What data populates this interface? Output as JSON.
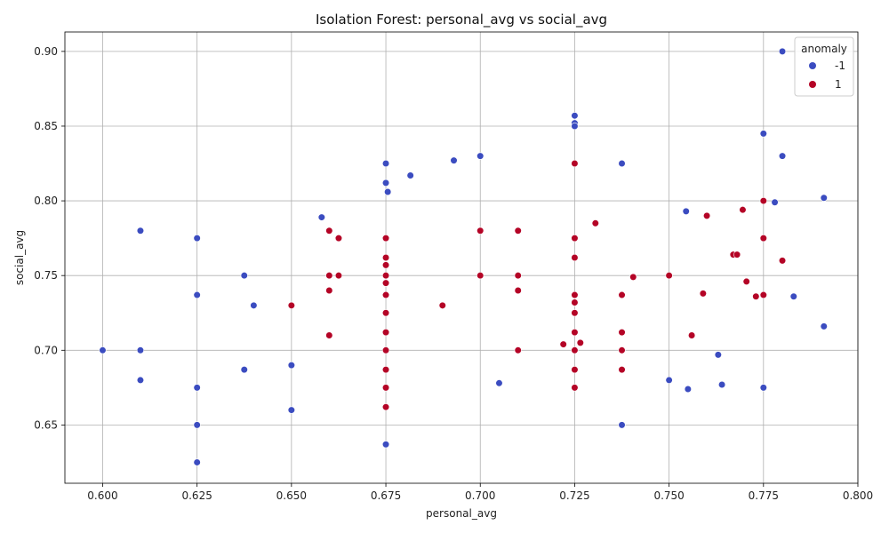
{
  "chart_data": {
    "type": "scatter",
    "title": "Isolation Forest: personal_avg vs social_avg",
    "xlabel": "personal_avg",
    "ylabel": "social_avg",
    "xlim": [
      0.59,
      0.8
    ],
    "ylim": [
      0.611,
      0.913
    ],
    "xticks": [
      "0.600",
      "0.625",
      "0.650",
      "0.675",
      "0.700",
      "0.725",
      "0.750",
      "0.775",
      "0.800"
    ],
    "yticks": [
      "0.65",
      "0.70",
      "0.75",
      "0.80",
      "0.85",
      "0.90"
    ],
    "grid": true,
    "legend": {
      "title": "anomaly",
      "placement": "top-right"
    },
    "series": [
      {
        "name": "-1",
        "color": "#3b4cc0",
        "points": [
          [
            0.6,
            0.7
          ],
          [
            0.61,
            0.78
          ],
          [
            0.61,
            0.7
          ],
          [
            0.61,
            0.68
          ],
          [
            0.625,
            0.775
          ],
          [
            0.625,
            0.737
          ],
          [
            0.625,
            0.675
          ],
          [
            0.625,
            0.65
          ],
          [
            0.625,
            0.625
          ],
          [
            0.6375,
            0.75
          ],
          [
            0.6375,
            0.687
          ],
          [
            0.64,
            0.73
          ],
          [
            0.65,
            0.69
          ],
          [
            0.65,
            0.66
          ],
          [
            0.658,
            0.789
          ],
          [
            0.675,
            0.825
          ],
          [
            0.675,
            0.812
          ],
          [
            0.6755,
            0.806
          ],
          [
            0.675,
            0.637
          ],
          [
            0.6815,
            0.817
          ],
          [
            0.693,
            0.827
          ],
          [
            0.7,
            0.83
          ],
          [
            0.705,
            0.678
          ],
          [
            0.725,
            0.857
          ],
          [
            0.725,
            0.852
          ],
          [
            0.725,
            0.85
          ],
          [
            0.7375,
            0.825
          ],
          [
            0.7375,
            0.65
          ],
          [
            0.75,
            0.68
          ],
          [
            0.7545,
            0.793
          ],
          [
            0.755,
            0.674
          ],
          [
            0.763,
            0.697
          ],
          [
            0.764,
            0.677
          ],
          [
            0.775,
            0.845
          ],
          [
            0.775,
            0.675
          ],
          [
            0.778,
            0.799
          ],
          [
            0.78,
            0.9
          ],
          [
            0.78,
            0.83
          ],
          [
            0.783,
            0.736
          ],
          [
            0.791,
            0.802
          ],
          [
            0.791,
            0.716
          ]
        ]
      },
      {
        "name": "1",
        "color": "#b40426",
        "points": [
          [
            0.65,
            0.73
          ],
          [
            0.66,
            0.78
          ],
          [
            0.66,
            0.75
          ],
          [
            0.66,
            0.74
          ],
          [
            0.66,
            0.71
          ],
          [
            0.6625,
            0.775
          ],
          [
            0.6625,
            0.75
          ],
          [
            0.675,
            0.775
          ],
          [
            0.675,
            0.762
          ],
          [
            0.675,
            0.757
          ],
          [
            0.675,
            0.75
          ],
          [
            0.675,
            0.745
          ],
          [
            0.675,
            0.737
          ],
          [
            0.675,
            0.725
          ],
          [
            0.675,
            0.712
          ],
          [
            0.675,
            0.7
          ],
          [
            0.675,
            0.687
          ],
          [
            0.675,
            0.675
          ],
          [
            0.675,
            0.662
          ],
          [
            0.69,
            0.73
          ],
          [
            0.7,
            0.78
          ],
          [
            0.7,
            0.75
          ],
          [
            0.71,
            0.78
          ],
          [
            0.71,
            0.75
          ],
          [
            0.71,
            0.74
          ],
          [
            0.71,
            0.7
          ],
          [
            0.722,
            0.704
          ],
          [
            0.725,
            0.825
          ],
          [
            0.725,
            0.775
          ],
          [
            0.725,
            0.762
          ],
          [
            0.725,
            0.737
          ],
          [
            0.725,
            0.732
          ],
          [
            0.725,
            0.725
          ],
          [
            0.725,
            0.712
          ],
          [
            0.725,
            0.7
          ],
          [
            0.725,
            0.687
          ],
          [
            0.725,
            0.675
          ],
          [
            0.7265,
            0.705
          ],
          [
            0.7305,
            0.785
          ],
          [
            0.7375,
            0.737
          ],
          [
            0.7375,
            0.712
          ],
          [
            0.7375,
            0.7
          ],
          [
            0.7375,
            0.687
          ],
          [
            0.7405,
            0.749
          ],
          [
            0.75,
            0.75
          ],
          [
            0.756,
            0.71
          ],
          [
            0.759,
            0.738
          ],
          [
            0.76,
            0.79
          ],
          [
            0.767,
            0.764
          ],
          [
            0.768,
            0.764
          ],
          [
            0.7695,
            0.794
          ],
          [
            0.7705,
            0.746
          ],
          [
            0.773,
            0.736
          ],
          [
            0.775,
            0.8
          ],
          [
            0.775,
            0.775
          ],
          [
            0.775,
            0.737
          ],
          [
            0.78,
            0.76
          ]
        ]
      }
    ]
  }
}
